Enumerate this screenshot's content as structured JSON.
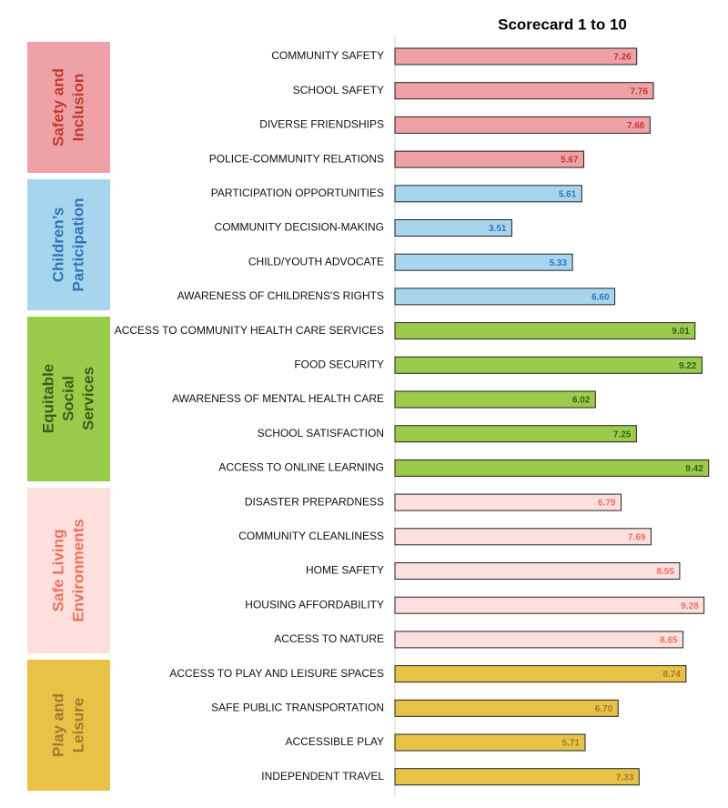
{
  "chart_data": {
    "type": "bar",
    "orientation": "horizontal",
    "title": "Scorecard 1 to 10",
    "xlim": [
      0,
      10
    ],
    "groups": [
      {
        "name": "Safety and Inclusion",
        "color": "#eea2a7",
        "text_color": "#c0392b",
        "categories": [
          "COMMUNITY SAFETY",
          "SCHOOL SAFETY",
          "DIVERSE FRIENDSHIPS",
          "POLICE-COMMUNITY RELATIONS"
        ],
        "values": [
          7.26,
          7.76,
          7.66,
          5.67
        ],
        "value_labels": [
          "7.26",
          "7.76",
          "7.66",
          "5.67"
        ]
      },
      {
        "name": "Children’s Participation",
        "color": "#a8d5ee",
        "text_color": "#2e75b6",
        "categories": [
          "PARTICIPATION OPPORTUNITIES",
          "COMMUNITY DECISION-MAKING",
          "CHILD/YOUTH ADVOCATE",
          "AWARENESS OF CHILDRENS'S RIGHTS"
        ],
        "values": [
          5.61,
          3.51,
          5.33,
          6.6
        ],
        "value_labels": [
          "5.61",
          "3.51",
          "5.33",
          "6.60"
        ]
      },
      {
        "name": "Equitable Social Services",
        "color": "#9bcb4a",
        "text_color": "#375e1c",
        "categories": [
          "ACCESS TO COMMUNITY HEALTH CARE SERVICES",
          "FOOD SECURITY",
          "AWARENESS OF MENTAL HEALTH CARE",
          "SCHOOL SATISFACTION",
          "ACCESS TO ONLINE LEARNING"
        ],
        "values": [
          9.01,
          9.22,
          6.02,
          7.25,
          9.42
        ],
        "value_labels": [
          "9.01",
          "9.22",
          "6.02",
          "7.25",
          "9.42"
        ]
      },
      {
        "name": "Safe Living Environments",
        "color": "#fde0de",
        "text_color": "#ef6f5e",
        "categories": [
          "DISASTER PREPARDNESS",
          "COMMUNITY CLEANLINESS",
          "HOME SAFETY",
          "HOUSING AFFORDABILITY",
          "ACCESS TO NATURE"
        ],
        "values": [
          6.79,
          7.69,
          8.55,
          9.28,
          8.65
        ],
        "value_labels": [
          "6.79",
          "7.69",
          "8.55",
          "9.28",
          "8.65"
        ]
      },
      {
        "name": "Play and Leisure",
        "color": "#e8c246",
        "text_color": "#9c7a2e",
        "categories": [
          "ACCESS TO PLAY AND LEISURE SPACES",
          "SAFE PUBLIC TRANSPORTATION",
          "ACCESSIBLE PLAY",
          "INDEPENDENT TRAVEL"
        ],
        "values": [
          8.74,
          6.7,
          5.71,
          7.33
        ],
        "value_labels": [
          "8.74",
          "6.70",
          "5.71",
          "7.33"
        ]
      }
    ]
  }
}
